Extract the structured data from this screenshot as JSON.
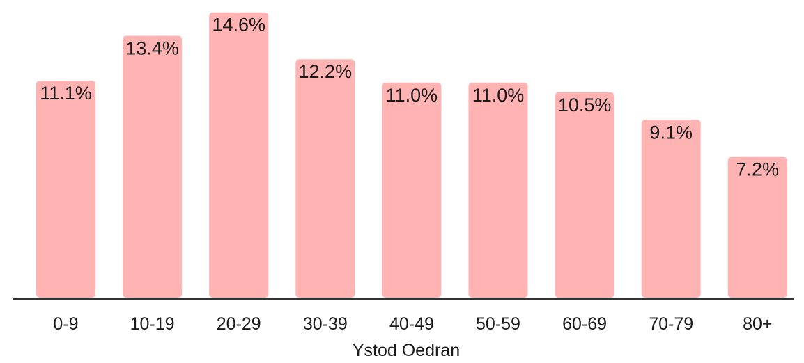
{
  "chart_data": {
    "type": "bar",
    "categories": [
      "0-9",
      "10-19",
      "20-29",
      "30-39",
      "40-49",
      "50-59",
      "60-69",
      "70-79",
      "80+"
    ],
    "values": [
      11.1,
      13.4,
      14.6,
      12.2,
      11.0,
      11.0,
      10.5,
      9.1,
      7.2
    ],
    "value_labels": [
      "11.1%",
      "13.4%",
      "14.6%",
      "12.2%",
      "11.0%",
      "11.0%",
      "10.5%",
      "9.1%",
      "7.2%"
    ],
    "xlabel": "Ystod Oedran",
    "ylabel": "",
    "ylim": [
      0,
      15.0
    ],
    "grid": false,
    "colors": {
      "bar": "#ffb3b3",
      "axis": "#333333",
      "text": "#1a1a1a"
    }
  }
}
